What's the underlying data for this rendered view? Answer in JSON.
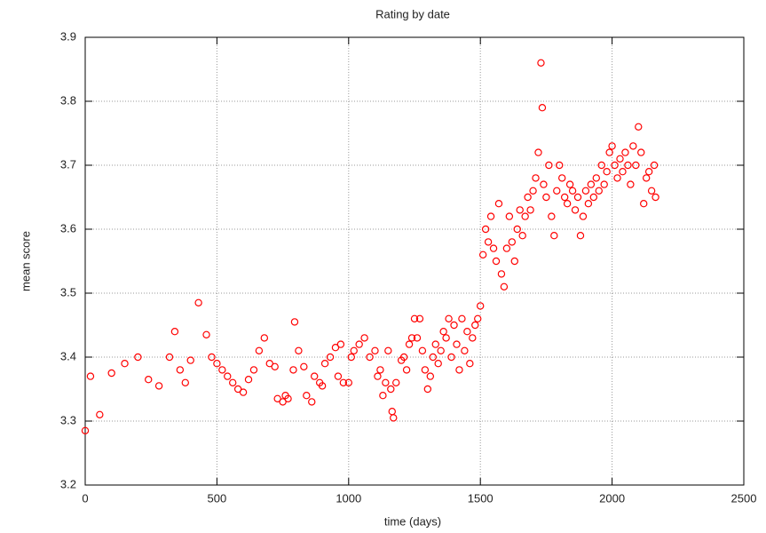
{
  "chart_data": {
    "type": "scatter",
    "title": "Rating by date",
    "x_label": "time (days)",
    "y_label": "mean score",
    "color": "#ff0000",
    "grid": true,
    "xlim": [
      0,
      2500
    ],
    "xticks": [
      0,
      500,
      1000,
      1500,
      2000,
      2500
    ],
    "ylim": [
      3.2,
      3.9
    ],
    "yticks": [
      3.2,
      3.3,
      3.4,
      3.5,
      3.6,
      3.7,
      3.8,
      3.9
    ],
    "x": [
      0,
      20,
      55,
      100,
      150,
      200,
      240,
      280,
      320,
      340,
      360,
      380,
      400,
      430,
      460,
      480,
      500,
      520,
      540,
      560,
      580,
      600,
      620,
      640,
      660,
      680,
      700,
      720,
      730,
      750,
      760,
      770,
      790,
      795,
      810,
      830,
      840,
      860,
      870,
      890,
      900,
      910,
      930,
      950,
      960,
      970,
      980,
      1000,
      1010,
      1020,
      1040,
      1060,
      1080,
      1100,
      1110,
      1120,
      1130,
      1140,
      1150,
      1160,
      1165,
      1170,
      1180,
      1200,
      1210,
      1220,
      1230,
      1240,
      1250,
      1260,
      1270,
      1280,
      1290,
      1300,
      1310,
      1320,
      1330,
      1340,
      1350,
      1360,
      1370,
      1380,
      1390,
      1400,
      1410,
      1420,
      1430,
      1440,
      1450,
      1460,
      1470,
      1480,
      1490,
      1500,
      1510,
      1520,
      1530,
      1540,
      1550,
      1560,
      1570,
      1580,
      1590,
      1600,
      1610,
      1620,
      1630,
      1640,
      1650,
      1660,
      1670,
      1680,
      1690,
      1700,
      1710,
      1720,
      1730,
      1735,
      1740,
      1750,
      1760,
      1770,
      1780,
      1790,
      1800,
      1810,
      1820,
      1830,
      1840,
      1850,
      1860,
      1870,
      1880,
      1890,
      1900,
      1910,
      1920,
      1930,
      1940,
      1950,
      1960,
      1970,
      1980,
      1990,
      2000,
      2010,
      2020,
      2030,
      2040,
      2050,
      2060,
      2070,
      2080,
      2090,
      2100,
      2110,
      2120,
      2130,
      2140,
      2150,
      2160,
      2165
    ],
    "values": [
      3.285,
      3.37,
      3.31,
      3.375,
      3.39,
      3.4,
      3.365,
      3.355,
      3.4,
      3.44,
      3.38,
      3.36,
      3.395,
      3.485,
      3.435,
      3.4,
      3.39,
      3.38,
      3.37,
      3.36,
      3.35,
      3.345,
      3.365,
      3.38,
      3.41,
      3.43,
      3.39,
      3.385,
      3.335,
      3.33,
      3.34,
      3.335,
      3.38,
      3.455,
      3.41,
      3.385,
      3.34,
      3.33,
      3.37,
      3.36,
      3.355,
      3.39,
      3.4,
      3.415,
      3.37,
      3.42,
      3.36,
      3.36,
      3.4,
      3.41,
      3.42,
      3.43,
      3.4,
      3.41,
      3.37,
      3.38,
      3.34,
      3.36,
      3.41,
      3.35,
      3.315,
      3.305,
      3.36,
      3.395,
      3.4,
      3.38,
      3.42,
      3.43,
      3.46,
      3.43,
      3.46,
      3.41,
      3.38,
      3.35,
      3.37,
      3.4,
      3.42,
      3.39,
      3.41,
      3.44,
      3.43,
      3.46,
      3.4,
      3.45,
      3.42,
      3.38,
      3.46,
      3.41,
      3.44,
      3.39,
      3.43,
      3.45,
      3.46,
      3.48,
      3.56,
      3.6,
      3.58,
      3.62,
      3.57,
      3.55,
      3.64,
      3.53,
      3.51,
      3.57,
      3.62,
      3.58,
      3.55,
      3.6,
      3.63,
      3.59,
      3.62,
      3.65,
      3.63,
      3.66,
      3.68,
      3.72,
      3.86,
      3.79,
      3.67,
      3.65,
      3.7,
      3.62,
      3.59,
      3.66,
      3.7,
      3.68,
      3.65,
      3.64,
      3.67,
      3.66,
      3.63,
      3.65,
      3.59,
      3.62,
      3.66,
      3.64,
      3.67,
      3.65,
      3.68,
      3.66,
      3.7,
      3.67,
      3.69,
      3.72,
      3.73,
      3.7,
      3.68,
      3.71,
      3.69,
      3.72,
      3.7,
      3.67,
      3.73,
      3.7,
      3.76,
      3.72,
      3.64,
      3.68,
      3.69,
      3.66,
      3.7,
      3.65
    ]
  }
}
